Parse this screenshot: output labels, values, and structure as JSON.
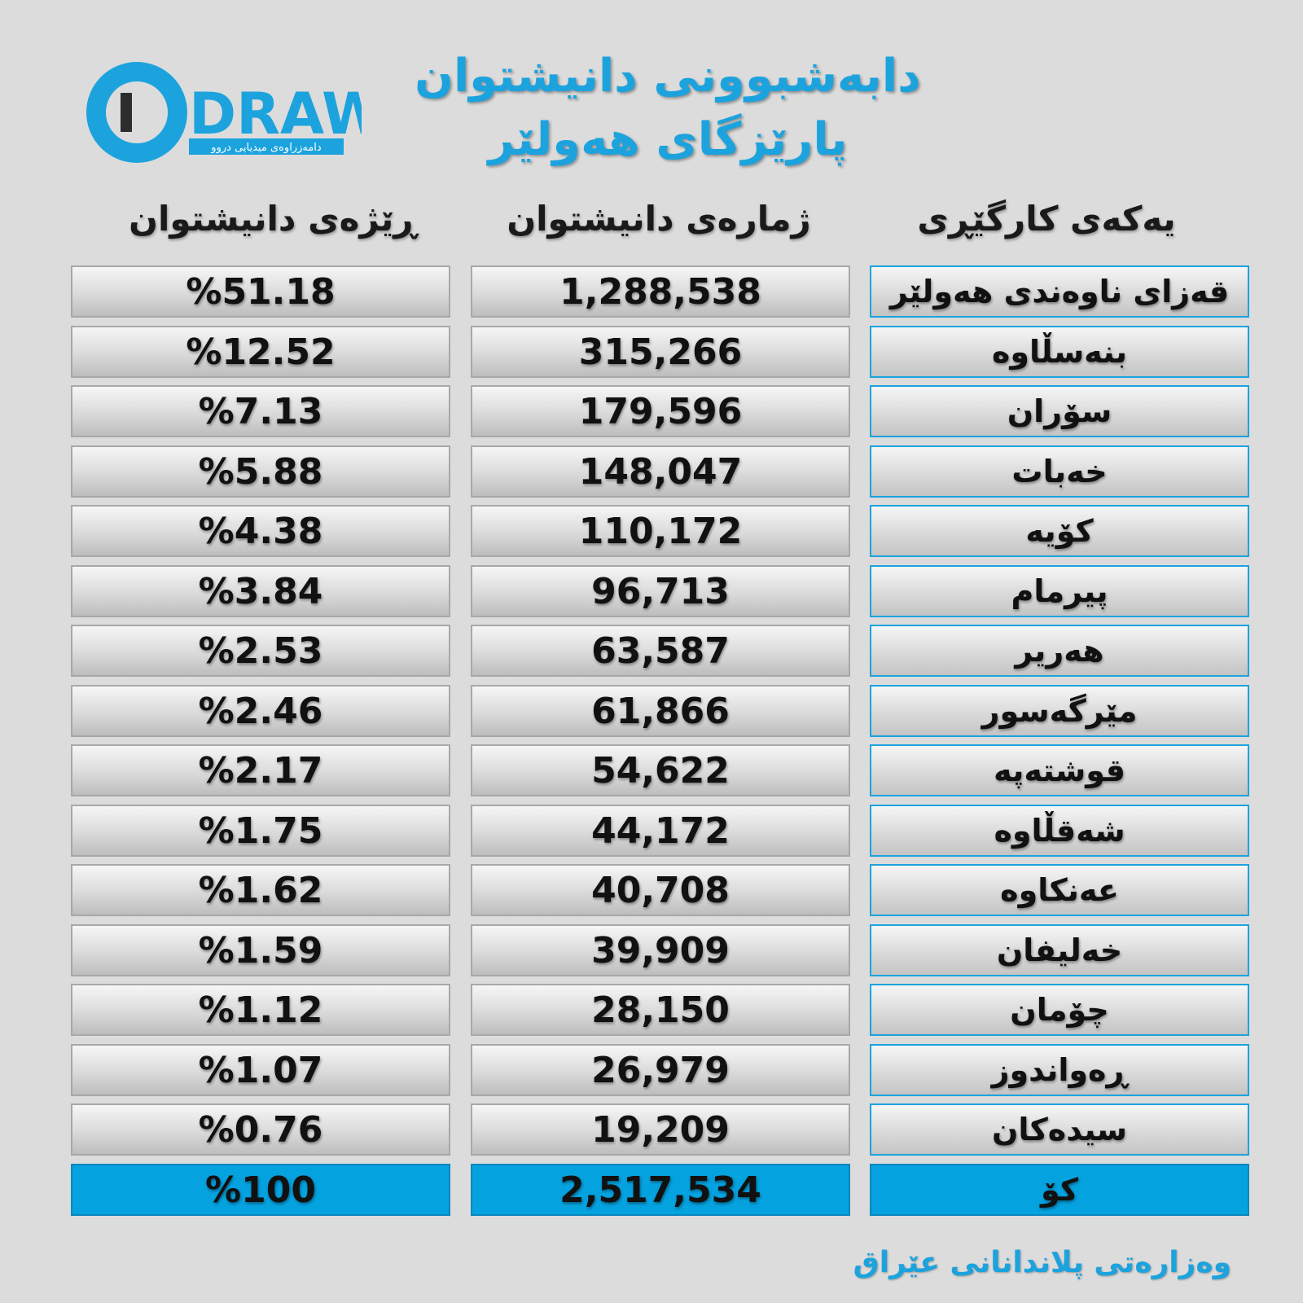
{
  "logo": {
    "wordmark": "DRAW",
    "tagline": "دامەزراوەی میدیایی دروو",
    "colors": {
      "blue": "#1ca3de",
      "dark": "#2d2d2d"
    }
  },
  "title": {
    "line1": "دابەشبوونی دانیشتوان",
    "line2": "پارێزگای هەولێر"
  },
  "footer": {
    "source": "وەزارەتی پلاندانانی عێراق"
  },
  "colors": {
    "accent": "#1ca3de",
    "total_fill": "#05a2e0"
  },
  "chart_data": {
    "type": "table",
    "columns": [
      "یەکەی کارگێڕی",
      "ژمارەی دانیشتوان",
      "ڕێژەی دانیشتوان"
    ],
    "rows": [
      {
        "unit": "قەزای ناوەندی هەولێر",
        "population": "1,288,538",
        "share": "%51.18"
      },
      {
        "unit": "بنەسڵاوە",
        "population": "315,266",
        "share": "%12.52"
      },
      {
        "unit": "سۆران",
        "population": "179,596",
        "share": "%7.13"
      },
      {
        "unit": "خەبات",
        "population": "148,047",
        "share": "%5.88"
      },
      {
        "unit": "کۆیە",
        "population": "110,172",
        "share": "%4.38"
      },
      {
        "unit": "پیرمام",
        "population": "96,713",
        "share": "%3.84"
      },
      {
        "unit": "هەریر",
        "population": "63,587",
        "share": "%2.53"
      },
      {
        "unit": "مێرگەسور",
        "population": "61,866",
        "share": "%2.46"
      },
      {
        "unit": "قوشتەپە",
        "population": "54,622",
        "share": "%2.17"
      },
      {
        "unit": "شەقڵاوە",
        "population": "44,172",
        "share": "%1.75"
      },
      {
        "unit": "عەنکاوە",
        "population": "40,708",
        "share": "%1.62"
      },
      {
        "unit": "خەلیفان",
        "population": "39,909",
        "share": "%1.59"
      },
      {
        "unit": "چۆمان",
        "population": "28,150",
        "share": "%1.12"
      },
      {
        "unit": "ڕەواندوز",
        "population": "26,979",
        "share": "%1.07"
      },
      {
        "unit": "سیدەکان",
        "population": "19,209",
        "share": "%0.76"
      }
    ],
    "total": {
      "unit": "کۆ",
      "population": "2,517,534",
      "share": "%100"
    }
  }
}
